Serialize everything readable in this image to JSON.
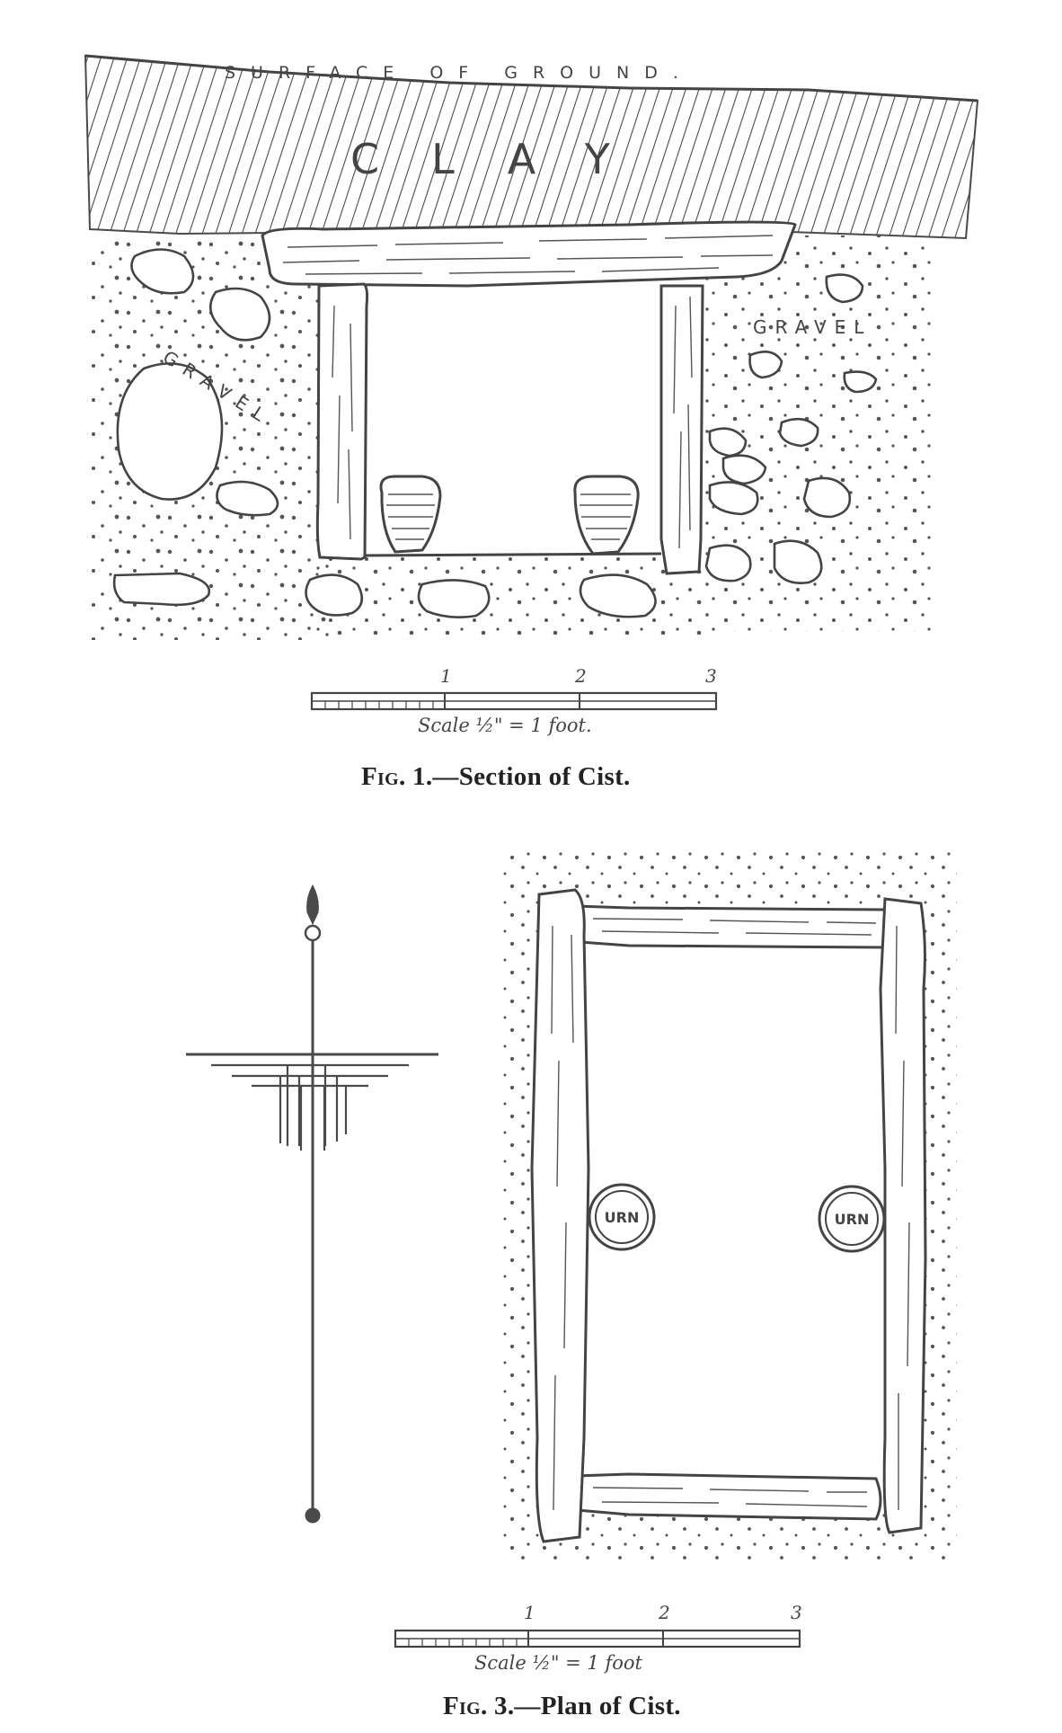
{
  "figure1": {
    "caption_prefix": "Fig. 1.",
    "caption_text": "—Section of Cist.",
    "labels": {
      "surface": "SURFACE OF GROUND.",
      "clay": "CLAY",
      "gravel_left": "GRAVEL",
      "gravel_right": "GRAVEL"
    },
    "scale": {
      "ticks": [
        "1",
        "2",
        "3"
      ],
      "label": "Scale ½\" = 1 foot."
    }
  },
  "figure3": {
    "caption_prefix": "Fig. 3.",
    "caption_text": "—Plan of Cist.",
    "urn_left": "URN",
    "urn_right": "URN",
    "scale": {
      "ticks": [
        "1",
        "2",
        "3"
      ],
      "label": "Scale ½\" = 1 foot"
    }
  },
  "colors": {
    "ink": "#4a4a4a",
    "paper": "#ffffff"
  }
}
